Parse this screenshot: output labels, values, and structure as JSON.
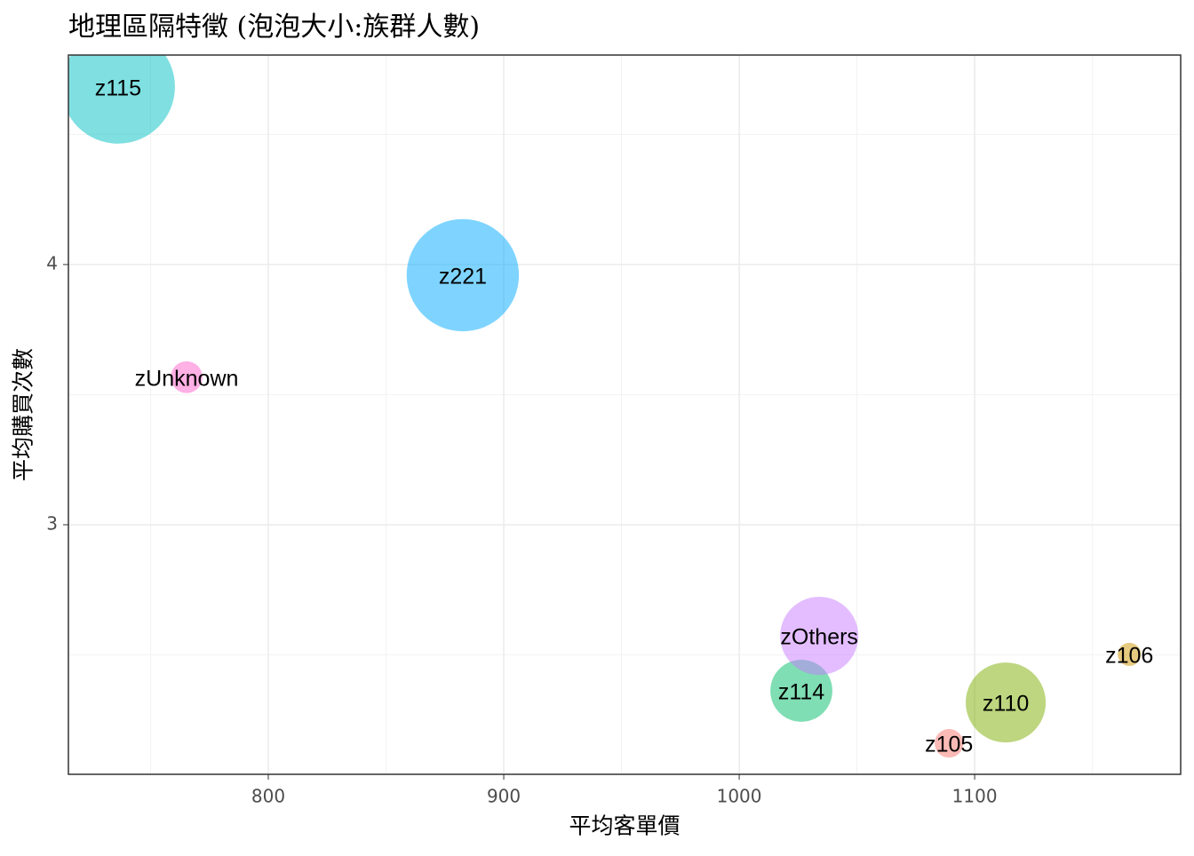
{
  "chart_data": {
    "type": "bubble",
    "title": "地理區隔特徵 (泡泡大小:族群人數)",
    "x_label": "平均客單價",
    "y_label": "平均購買次數",
    "categories": [
      "z105",
      "z106",
      "z110",
      "z114",
      "z115",
      "z221",
      "zOthers",
      "zUnknown"
    ],
    "x": [
      1089.1,
      1165.7,
      1113.2,
      1026.4,
      736.2,
      882.6,
      1034,
      765.3
    ],
    "values": [
      2.16,
      2.502,
      2.317,
      2.362,
      4.683,
      3.959,
      2.573,
      3.567
    ],
    "sizes": [
      260,
      170,
      2030,
      1220,
      4100,
      4000,
      1940,
      320
    ],
    "colors": [
      "#F8766D",
      "#CD9600",
      "#7CAE00",
      "#00BE67",
      "#00BFC4",
      "#00A9FF",
      "#C77CFF",
      "#FF61CC"
    ],
    "xlim": [
      715.1,
      1187.5
    ],
    "ylim": [
      2.041,
      4.805
    ],
    "xticks": [
      800,
      900,
      1000,
      1100
    ],
    "yticks": [
      3,
      4
    ],
    "minor_xticks": [
      750,
      850,
      950,
      1050,
      1150
    ],
    "minor_yticks": [
      2.5,
      3.5,
      4.5
    ],
    "grid": true
  }
}
